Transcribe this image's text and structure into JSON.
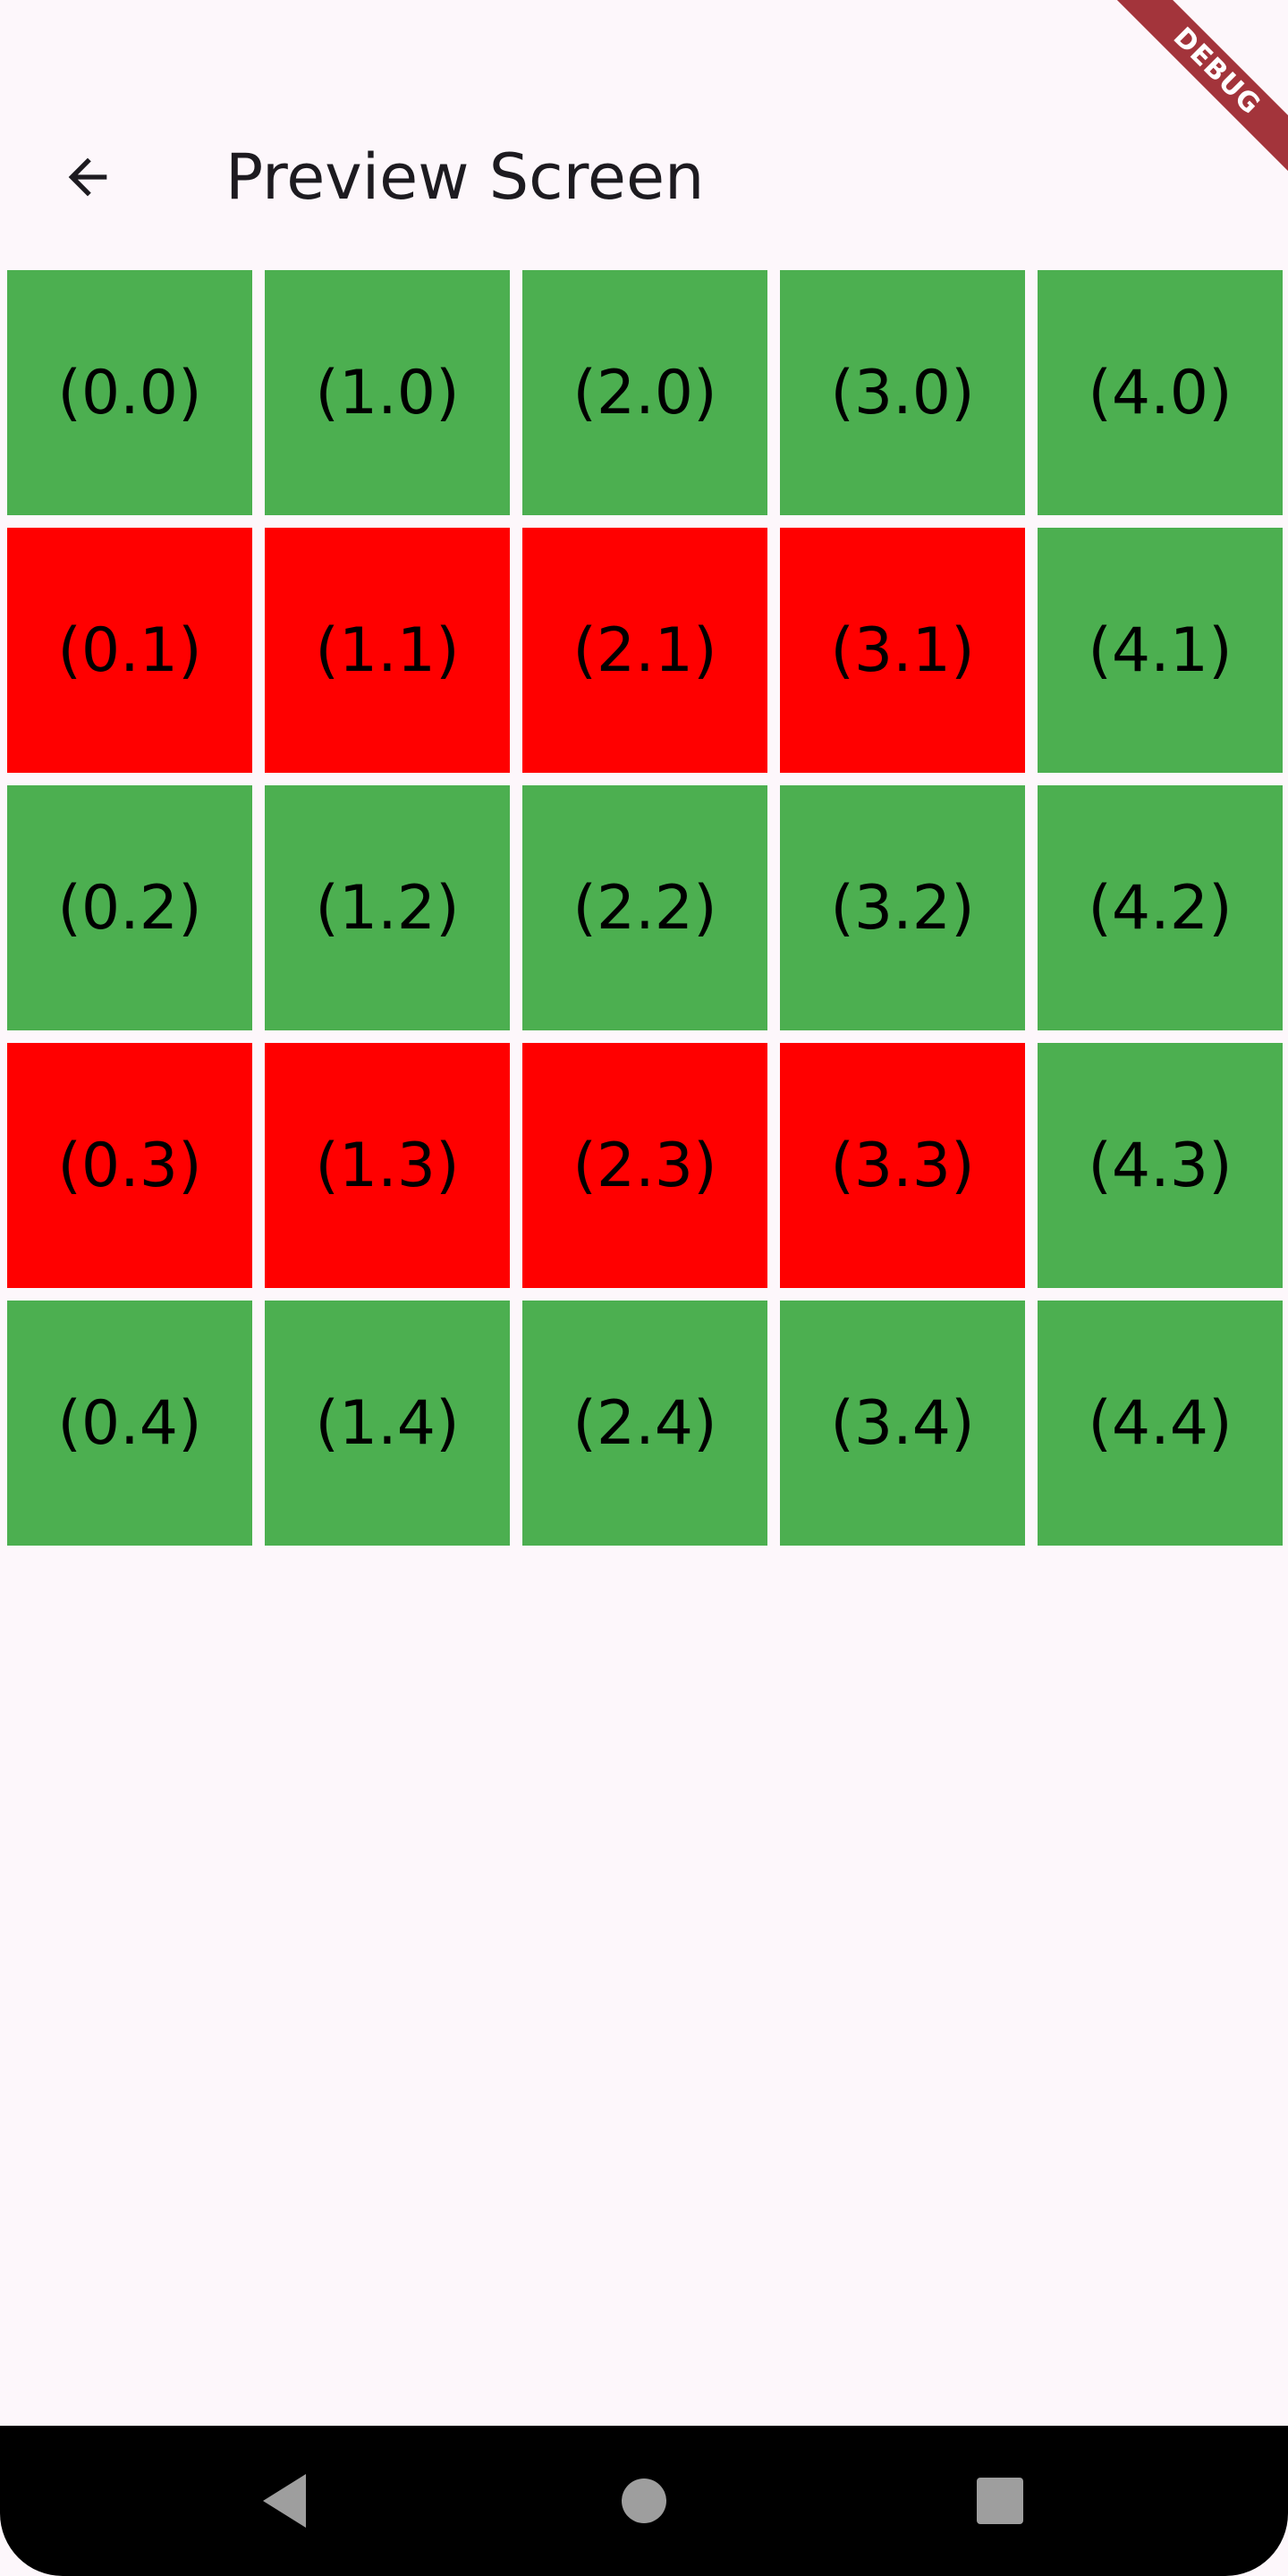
{
  "app_bar": {
    "title": "Preview Screen",
    "back_icon": "arrow-left-icon"
  },
  "debug_banner": "DEBUG",
  "colors": {
    "green": "#4caf50",
    "red": "#ff0000",
    "background": "#fdf7fb"
  },
  "grid": {
    "columns": 5,
    "cells": [
      {
        "label": "(0.0)",
        "color": "green"
      },
      {
        "label": "(1.0)",
        "color": "green"
      },
      {
        "label": "(2.0)",
        "color": "green"
      },
      {
        "label": "(3.0)",
        "color": "green"
      },
      {
        "label": "(4.0)",
        "color": "green"
      },
      {
        "label": "(0.1)",
        "color": "red"
      },
      {
        "label": "(1.1)",
        "color": "red"
      },
      {
        "label": "(2.1)",
        "color": "red"
      },
      {
        "label": "(3.1)",
        "color": "red"
      },
      {
        "label": "(4.1)",
        "color": "green"
      },
      {
        "label": "(0.2)",
        "color": "green"
      },
      {
        "label": "(1.2)",
        "color": "green"
      },
      {
        "label": "(2.2)",
        "color": "green"
      },
      {
        "label": "(3.2)",
        "color": "green"
      },
      {
        "label": "(4.2)",
        "color": "green"
      },
      {
        "label": "(0.3)",
        "color": "red"
      },
      {
        "label": "(1.3)",
        "color": "red"
      },
      {
        "label": "(2.3)",
        "color": "red"
      },
      {
        "label": "(3.3)",
        "color": "red"
      },
      {
        "label": "(4.3)",
        "color": "green"
      },
      {
        "label": "(0.4)",
        "color": "green"
      },
      {
        "label": "(1.4)",
        "color": "green"
      },
      {
        "label": "(2.4)",
        "color": "green"
      },
      {
        "label": "(3.4)",
        "color": "green"
      },
      {
        "label": "(4.4)",
        "color": "green"
      }
    ]
  },
  "nav_bar": {
    "back_icon": "triangle-back-icon",
    "home_icon": "circle-home-icon",
    "recent_icon": "square-recents-icon"
  }
}
